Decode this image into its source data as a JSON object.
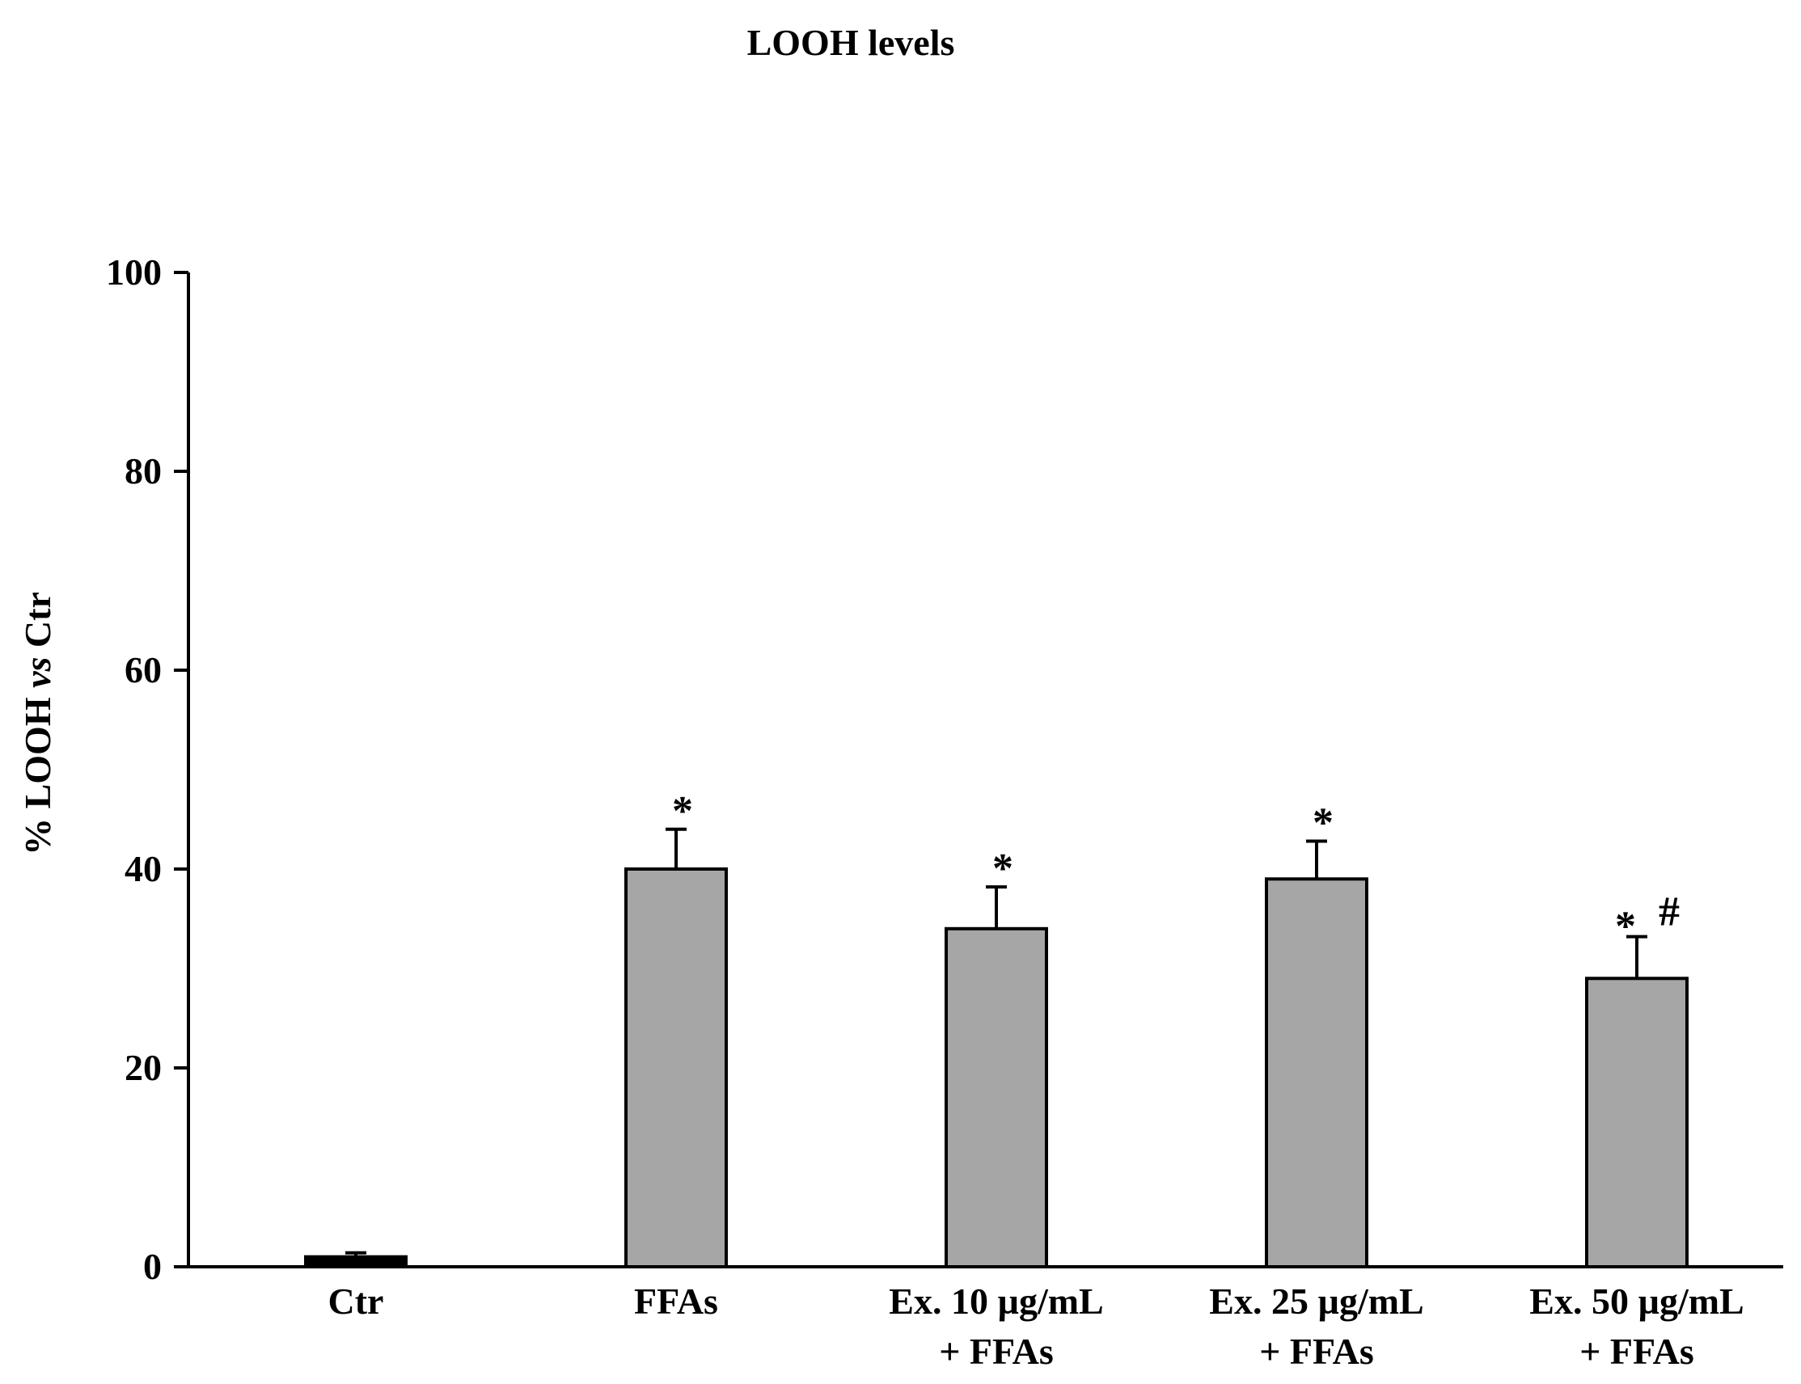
{
  "chart_data": {
    "type": "bar",
    "title": "LOOH levels",
    "ylabel": {
      "pre": "% LOOH ",
      "italic": "vs",
      "post": " Ctr"
    },
    "xlabel": "",
    "ylim": [
      0,
      100
    ],
    "yticks": [
      0,
      20,
      40,
      60,
      80,
      100
    ],
    "grid": false,
    "categories": [
      [
        "Ctr"
      ],
      [
        "FFAs"
      ],
      [
        "Ex. 10 µg/mL",
        "+ FFAs"
      ],
      [
        "Ex. 25 µg/mL",
        "+ FFAs"
      ],
      [
        "Ex. 50 µg/mL",
        "+ FFAs"
      ]
    ],
    "values": [
      1,
      40,
      34,
      39,
      29
    ],
    "errors": [
      0.4,
      4,
      4.2,
      3.8,
      4.2
    ],
    "annotations": [
      "",
      "*",
      "*",
      "*",
      "*  #"
    ],
    "colors": {
      "control": "#000000",
      "bar": "#a6a6a6",
      "stroke": "#000000"
    }
  }
}
